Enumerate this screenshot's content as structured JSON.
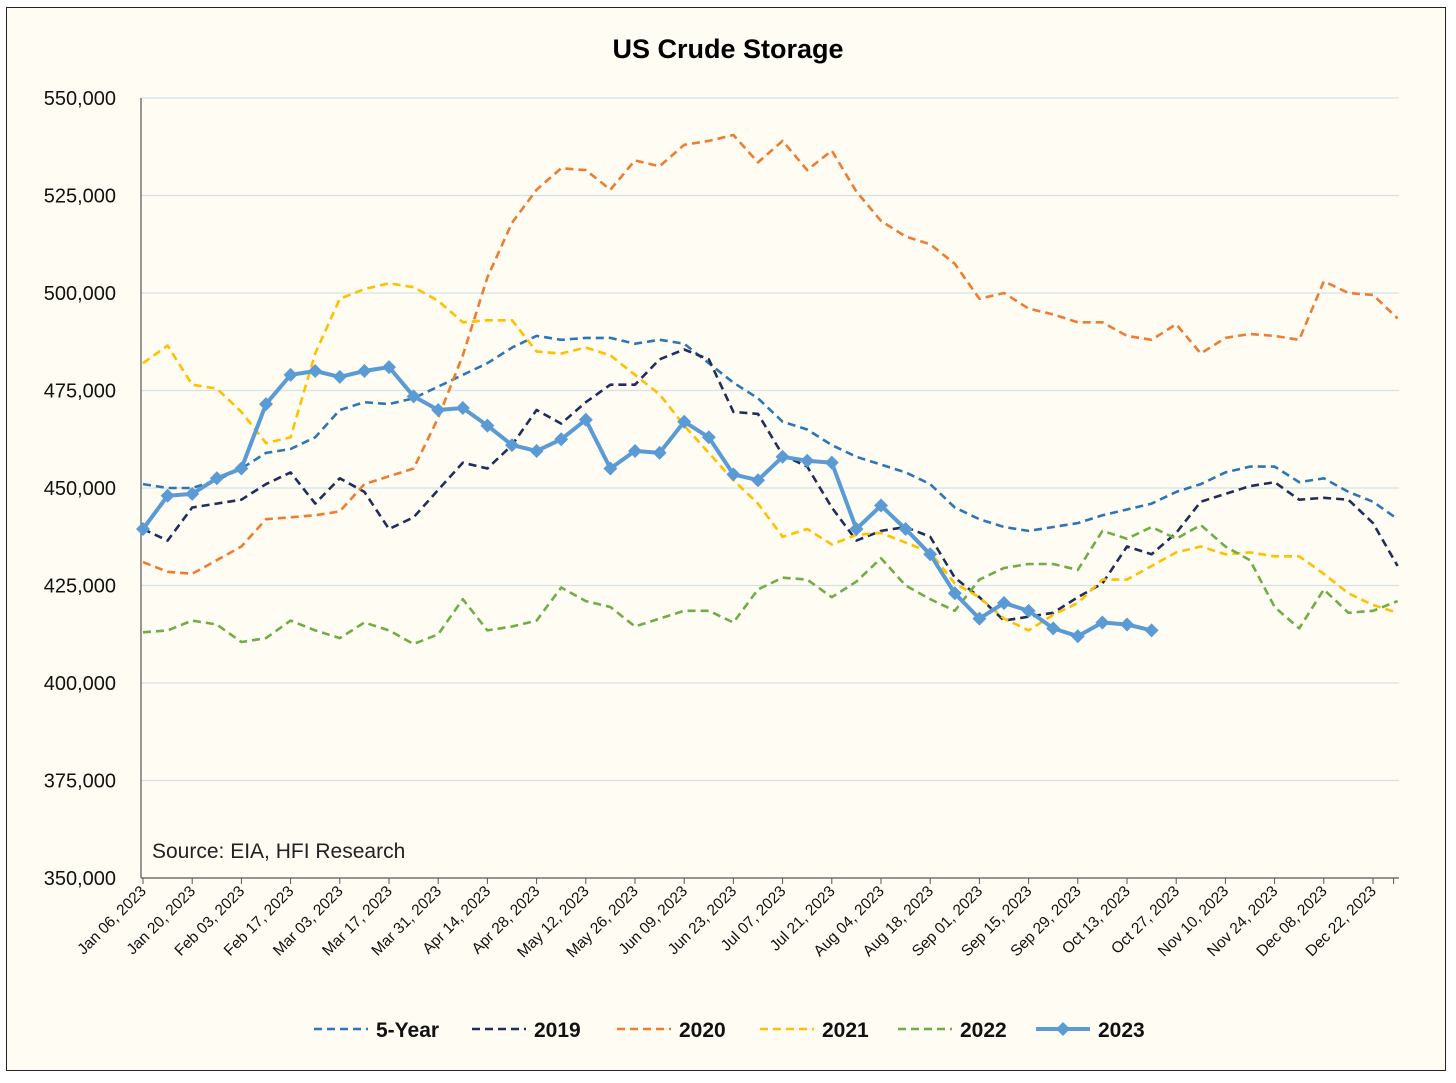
{
  "chart_data": {
    "type": "line",
    "title": "US Crude Storage",
    "annotation": "Source: EIA, HFI Research",
    "xlabel": "",
    "ylabel": "",
    "ylim": [
      350000,
      550000
    ],
    "yticks": [
      350000,
      375000,
      400000,
      425000,
      450000,
      475000,
      500000,
      525000,
      550000
    ],
    "ytick_labels": [
      "350,000",
      "375,000",
      "400,000",
      "425,000",
      "450,000",
      "475,000",
      "500,000",
      "525,000",
      "550,000"
    ],
    "xtick_labels": [
      "Jan 06, 2023",
      "Jan 20, 2023",
      "Feb 03, 2023",
      "Feb 17, 2023",
      "Mar 03, 2023",
      "Mar 17, 2023",
      "Mar 31, 2023",
      "Apr 14, 2023",
      "Apr 28, 2023",
      "May 12, 2023",
      "May 26, 2023",
      "Jun 09, 2023",
      "Jun 23, 2023",
      "Jul 07, 2023",
      "Jul 21, 2023",
      "Aug 04, 2023",
      "Aug 18, 2023",
      "Sep 01, 2023",
      "Sep 15, 2023",
      "Sep 29, 2023",
      "Oct 13, 2023",
      "Oct 27, 2023",
      "Nov 10, 2023",
      "Nov 24, 2023",
      "Dec 08, 2023",
      "Dec 22, 2023"
    ],
    "weeks": 52,
    "grid": true,
    "legend": "bottom",
    "series": [
      {
        "name": "5-Year",
        "color": "#2e75b6",
        "style": "dashed",
        "values": [
          451000,
          450000,
          450000,
          452000,
          455000,
          459000,
          460000,
          463000,
          470000,
          472000,
          471500,
          473000,
          476000,
          479000,
          482000,
          486000,
          489000,
          488000,
          488500,
          488500,
          487000,
          488000,
          487000,
          482000,
          477000,
          473000,
          467000,
          465000,
          461000,
          458000,
          456000,
          454000,
          451000,
          445000,
          442000,
          440000,
          439000,
          440000,
          441000,
          443000,
          444500,
          446000,
          449000,
          451000,
          454000,
          455500,
          455500,
          451500,
          452500,
          449000,
          446500,
          442000
        ]
      },
      {
        "name": "2019",
        "color": "#1f2e5a",
        "style": "dashed",
        "values": [
          439500,
          436500,
          445000,
          446000,
          447000,
          451000,
          454000,
          446000,
          452500,
          449000,
          439500,
          442500,
          449500,
          456500,
          455000,
          461000,
          470000,
          466500,
          472000,
          476500,
          476500,
          483000,
          485500,
          483000,
          469500,
          469000,
          458500,
          455500,
          445000,
          436500,
          439000,
          440000,
          437500,
          427000,
          422000,
          416000,
          417000,
          418000,
          422000,
          425500,
          435000,
          433000,
          438500,
          446500,
          448500,
          450500,
          451500,
          447000,
          447500,
          447000,
          441000,
          430000
        ]
      },
      {
        "name": "2020",
        "color": "#ed7d31",
        "style": "dashed",
        "values": [
          431000,
          428500,
          428000,
          431500,
          435000,
          442000,
          442500,
          443000,
          444000,
          451000,
          453000,
          455000,
          468000,
          484000,
          504000,
          518000,
          526500,
          532000,
          531500,
          526500,
          534000,
          532500,
          538000,
          539000,
          540500,
          533500,
          539000,
          531500,
          536500,
          526000,
          518500,
          514500,
          512500,
          507500,
          498500,
          500000,
          496000,
          494500,
          492500,
          492500,
          489000,
          488000,
          492000,
          484500,
          488500,
          489500,
          489000,
          488000,
          503000,
          500000,
          499500,
          493500
        ]
      },
      {
        "name": "2021",
        "color": "#ffc000",
        "style": "dashed",
        "values": [
          482000,
          486500,
          476500,
          475500,
          469500,
          461500,
          463000,
          484500,
          498500,
          501000,
          502500,
          501500,
          498000,
          492500,
          493000,
          493000,
          485000,
          484500,
          486000,
          484000,
          479000,
          474000,
          466000,
          459000,
          452000,
          446000,
          437500,
          439500,
          435500,
          438000,
          438500,
          436000,
          433500,
          425500,
          422000,
          416500,
          413500,
          417500,
          420500,
          426500,
          426500,
          430000,
          433500,
          435000,
          433000,
          433500,
          432500,
          432500,
          428000,
          423000,
          420000,
          418000
        ]
      },
      {
        "name": "2022",
        "color": "#70ad47",
        "style": "dashed",
        "values": [
          413000,
          413500,
          416000,
          415000,
          410500,
          411500,
          416000,
          413500,
          411500,
          415500,
          413500,
          410000,
          412500,
          421500,
          413500,
          414500,
          416000,
          424500,
          421000,
          419500,
          414500,
          416500,
          418500,
          418500,
          415500,
          424000,
          427000,
          426500,
          422000,
          426000,
          432000,
          425000,
          421500,
          418500,
          426500,
          429500,
          430500,
          430500,
          429000,
          439000,
          437000,
          440000,
          437000,
          440500,
          435000,
          431500,
          419500,
          414000,
          424000,
          418000,
          418500,
          421000
        ]
      },
      {
        "name": "2023",
        "color": "#5b9bd5",
        "style": "solid-marker",
        "values": [
          439500,
          448000,
          448500,
          452500,
          455000,
          471500,
          479000,
          480000,
          478500,
          480000,
          481000,
          473500,
          470000,
          470500,
          466000,
          461000,
          459500,
          462500,
          467500,
          455000,
          459500,
          459000,
          467000,
          463000,
          453500,
          452000,
          458000,
          457000,
          456500,
          439500,
          445500,
          439500,
          433000,
          423000,
          416500,
          420500,
          418500,
          414000,
          412000,
          415500,
          415000,
          413500
        ]
      }
    ]
  }
}
